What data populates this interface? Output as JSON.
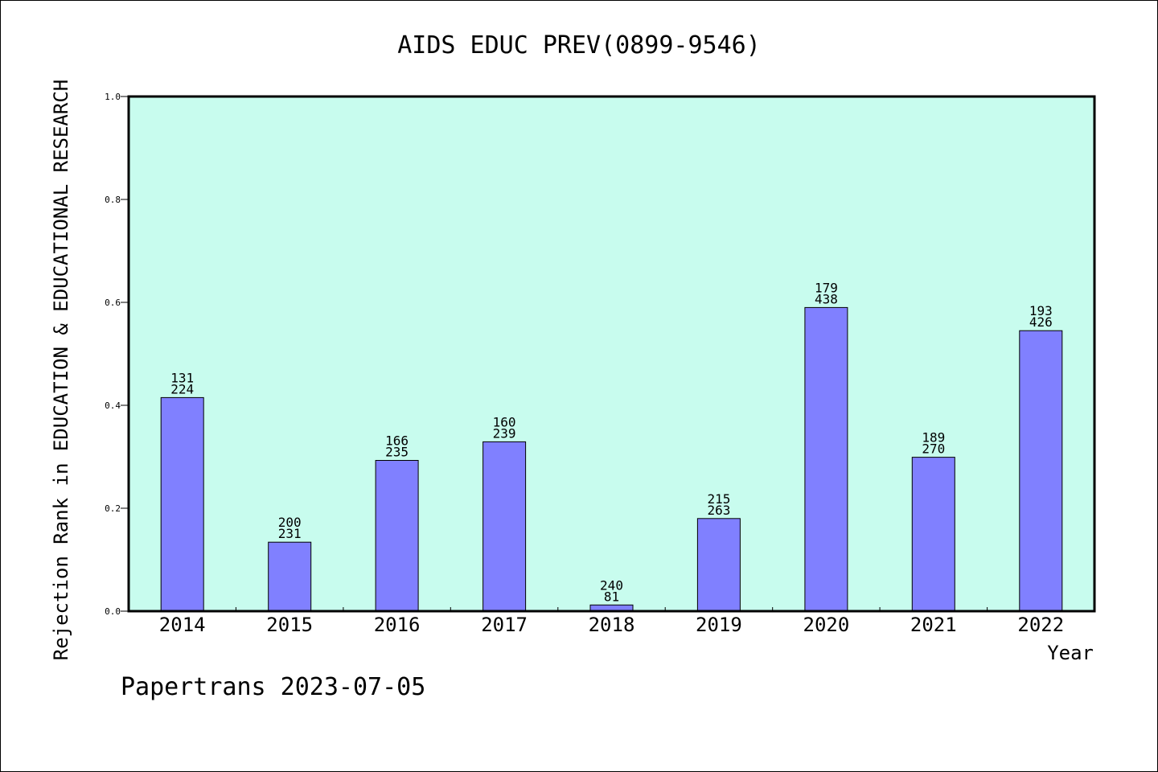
{
  "chart_data": {
    "type": "bar",
    "title": "AIDS EDUC PREV(0899-9546)",
    "xlabel": "Year",
    "ylabel": "Rejection Rank in EDUCATION & EDUCATIONAL RESEARCH",
    "categories": [
      "2014",
      "2015",
      "2016",
      "2017",
      "2018",
      "2019",
      "2020",
      "2021",
      "2022"
    ],
    "values": [
      0.415,
      0.134,
      0.293,
      0.329,
      0.012,
      0.18,
      0.59,
      0.299,
      0.545
    ],
    "label_top": [
      "131",
      "200",
      "166",
      "160",
      "240",
      "215",
      "179",
      "189",
      "193"
    ],
    "label_bottom": [
      "224",
      "231",
      "235",
      "239",
      "81",
      "263",
      "438",
      "270",
      "426"
    ],
    "ylim": [
      0,
      1.0
    ],
    "yticks": [
      "0.0",
      "0.2",
      "0.4",
      "0.6",
      "0.8",
      "1.0"
    ],
    "grid": false,
    "colors": {
      "plot_background": "#c8fcee",
      "bar_fill": "#8080ff",
      "bar_stroke": "#000000"
    }
  },
  "footer": "Papertrans 2023-07-05"
}
